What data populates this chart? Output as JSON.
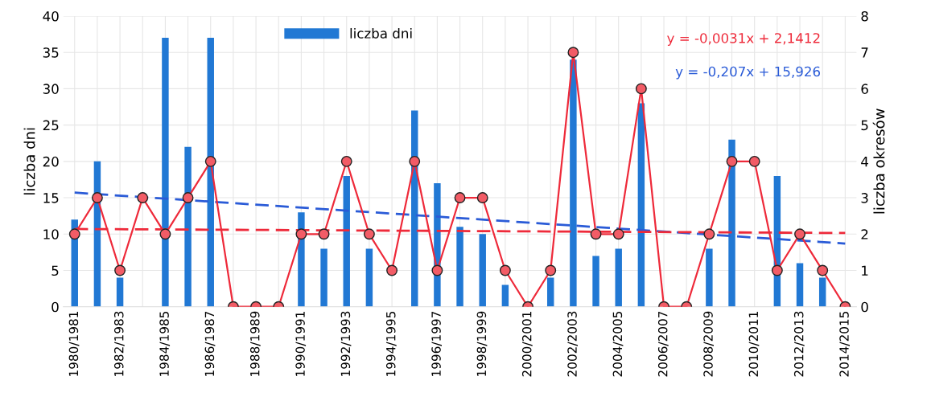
{
  "chart_data": {
    "type": "bar",
    "xlabel": null,
    "ylabel": "liczba dni",
    "y2label": "liczba okresów",
    "categories": [
      "1980/1981",
      null,
      "1982/1983",
      null,
      "1984/1985",
      null,
      "1986/1987",
      null,
      "1988/1989",
      null,
      "1990/1991",
      null,
      "1992/1993",
      null,
      "1994/1995",
      null,
      "1996/1997",
      null,
      "1998/1999",
      null,
      "2000/2001",
      null,
      "2002/2003",
      null,
      "2004/2005",
      null,
      "2006/2007",
      null,
      "2008/2009",
      null,
      "2010/2011",
      null,
      "2012/2013",
      null,
      "2014/2015"
    ],
    "series": [
      {
        "name": "liczba dni",
        "color": "#2178d4",
        "values": [
          12,
          20,
          4,
          null,
          37,
          22,
          37,
          0,
          0,
          0,
          13,
          8,
          18,
          8,
          null,
          27,
          17,
          11,
          10,
          3,
          0,
          4,
          34,
          7,
          8,
          28,
          0,
          0,
          8,
          23,
          null,
          18,
          6,
          4,
          0
        ]
      },
      {
        "type": "line",
        "axis": "y2",
        "color": "#ee2a3a",
        "marker": "circle",
        "line_style": "solid",
        "values": [
          2,
          3,
          1,
          3,
          2,
          3,
          4,
          0,
          0,
          0,
          2,
          2,
          4,
          2,
          1,
          4,
          1,
          3,
          3,
          1,
          0,
          1,
          7,
          2,
          2,
          6,
          0,
          0,
          2,
          4,
          4,
          1,
          2,
          1,
          0
        ]
      },
      {
        "type": "line",
        "axis": "y2",
        "color": "#ee2a3a",
        "marker": "none",
        "line_style": "dashed",
        "x": [
          "1980/1981",
          "2014/2015"
        ],
        "values": [
          2.14,
          2.03
        ]
      },
      {
        "type": "line",
        "axis": "y",
        "color": "#2a5bd7",
        "marker": "none",
        "line_style": "dashed",
        "x": [
          "1980/1981",
          "2014/2015"
        ],
        "values": [
          15.7,
          8.7
        ]
      }
    ],
    "ylim": [
      0,
      40
    ],
    "yticks": [
      0,
      5,
      10,
      15,
      20,
      25,
      30,
      35,
      40
    ],
    "y2lim": [
      0,
      8
    ],
    "y2ticks": [
      0,
      1,
      2,
      3,
      4,
      5,
      6,
      7,
      8
    ],
    "annotations": [
      "y = -0,0031x + 2,1412",
      "y = -0,207x + 15,926"
    ],
    "grid": true,
    "legend": "top"
  }
}
